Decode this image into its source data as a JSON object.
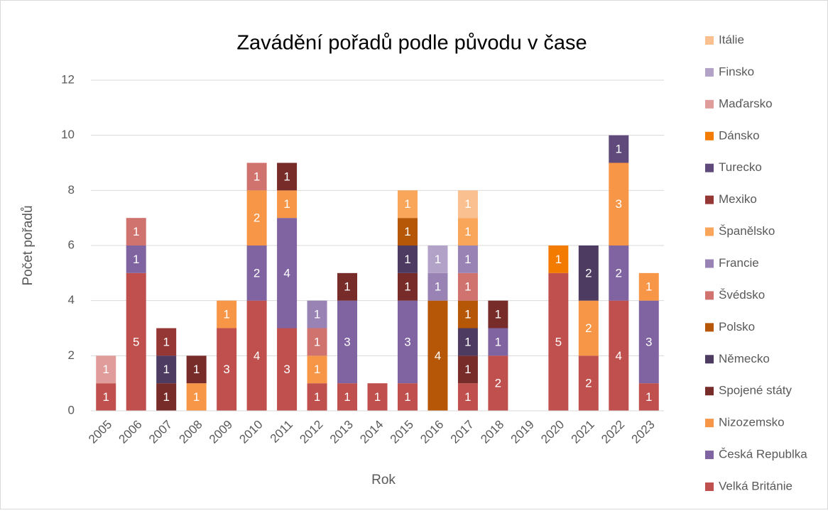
{
  "chart_data": {
    "type": "bar",
    "stacked": true,
    "title": "Zavádění pořadů podle původu v čase",
    "x_label": "Rok",
    "y_label": "Počet pořadů",
    "categories": [
      "2005",
      "2006",
      "2007",
      "2008",
      "2009",
      "2010",
      "2011",
      "2012",
      "2013",
      "2014",
      "2015",
      "2016",
      "2017",
      "2018",
      "2019",
      "2020",
      "2021",
      "2022",
      "2023"
    ],
    "ylim": [
      0,
      12
    ],
    "yticks": [
      0,
      2,
      4,
      6,
      8,
      10,
      12
    ],
    "grid": true,
    "legend": "right",
    "series": [
      {
        "name": "Velká Británie",
        "color": "#c0504d",
        "values": [
          1,
          5,
          null,
          null,
          3,
          4,
          3,
          1,
          1,
          1,
          1,
          null,
          1,
          2,
          null,
          5,
          2,
          4,
          1
        ]
      },
      {
        "name": "Česká Republka",
        "color": "#8064a2",
        "values": [
          null,
          1,
          null,
          null,
          null,
          2,
          4,
          null,
          3,
          null,
          3,
          null,
          null,
          1,
          null,
          null,
          null,
          2,
          3
        ]
      },
      {
        "name": "Nizozemsko",
        "color": "#f79646",
        "values": [
          null,
          null,
          null,
          1,
          1,
          2,
          1,
          1,
          null,
          null,
          null,
          null,
          null,
          null,
          null,
          null,
          2,
          3,
          1
        ]
      },
      {
        "name": "Spojené státy",
        "color": "#772c2a",
        "values": [
          null,
          null,
          1,
          1,
          null,
          null,
          1,
          null,
          1,
          null,
          1,
          null,
          1,
          1,
          null,
          null,
          null,
          null,
          null
        ]
      },
      {
        "name": "Německo",
        "color": "#4d3b62",
        "values": [
          null,
          null,
          1,
          null,
          null,
          null,
          null,
          null,
          null,
          null,
          1,
          null,
          1,
          null,
          null,
          null,
          2,
          null,
          null
        ]
      },
      {
        "name": "Polsko",
        "color": "#b65708",
        "values": [
          null,
          null,
          null,
          null,
          null,
          null,
          null,
          null,
          null,
          null,
          1,
          4,
          1,
          null,
          null,
          null,
          null,
          null,
          null
        ]
      },
      {
        "name": "Švédsko",
        "color": "#d0736f",
        "values": [
          null,
          1,
          null,
          null,
          null,
          1,
          null,
          1,
          null,
          null,
          null,
          null,
          1,
          null,
          null,
          null,
          null,
          null,
          null
        ]
      },
      {
        "name": "Francie",
        "color": "#9983b5",
        "values": [
          null,
          null,
          null,
          null,
          null,
          null,
          null,
          1,
          null,
          null,
          null,
          1,
          1,
          null,
          null,
          null,
          null,
          null,
          null
        ]
      },
      {
        "name": "Španělsko",
        "color": "#f9a65a",
        "values": [
          null,
          null,
          null,
          null,
          null,
          null,
          null,
          null,
          null,
          null,
          1,
          null,
          1,
          null,
          null,
          null,
          null,
          null,
          null
        ]
      },
      {
        "name": "Mexiko",
        "color": "#953735",
        "values": [
          null,
          null,
          1,
          null,
          null,
          null,
          null,
          null,
          null,
          null,
          null,
          null,
          null,
          null,
          null,
          null,
          null,
          null,
          null
        ]
      },
      {
        "name": "Turecko",
        "color": "#604a7b",
        "values": [
          null,
          null,
          null,
          null,
          null,
          null,
          null,
          null,
          null,
          null,
          null,
          null,
          null,
          null,
          null,
          null,
          null,
          1,
          null
        ]
      },
      {
        "name": "Dánsko",
        "color": "#f27b00",
        "values": [
          null,
          null,
          null,
          null,
          null,
          null,
          null,
          null,
          null,
          null,
          null,
          null,
          null,
          null,
          null,
          1,
          null,
          null,
          null
        ]
      },
      {
        "name": "Maďarsko",
        "color": "#e09c9a",
        "values": [
          1,
          null,
          null,
          null,
          null,
          null,
          null,
          null,
          null,
          null,
          null,
          null,
          null,
          null,
          null,
          null,
          null,
          null,
          null
        ]
      },
      {
        "name": "Finsko",
        "color": "#b3a2c7",
        "values": [
          null,
          null,
          null,
          null,
          null,
          null,
          null,
          null,
          null,
          null,
          null,
          1,
          null,
          null,
          null,
          null,
          null,
          null,
          null
        ]
      },
      {
        "name": "Itálie",
        "color": "#fac090",
        "values": [
          null,
          null,
          null,
          null,
          null,
          null,
          null,
          null,
          null,
          null,
          null,
          null,
          1,
          null,
          null,
          null,
          null,
          null,
          null
        ]
      }
    ]
  }
}
